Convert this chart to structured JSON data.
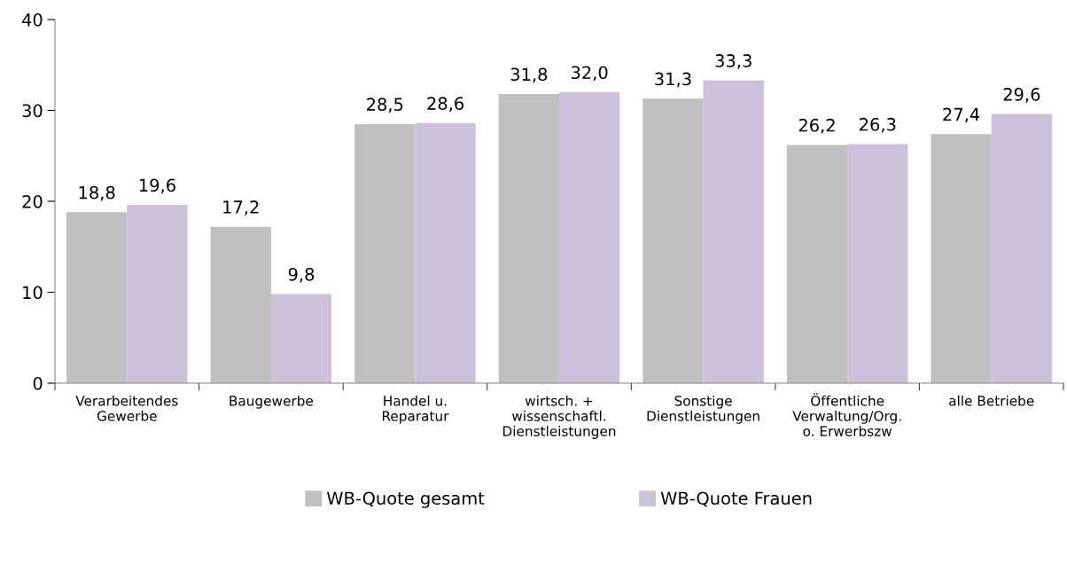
{
  "chart_data": {
    "type": "bar",
    "categories": [
      "Verarbeitendes\nGewerbe",
      "Baugewerbe",
      "Handel u.\nReparatur",
      "wirtsch. +\nwissenschaftl.\nDienstleistungen",
      "Sonstige\nDienstleistungen",
      "Öffentliche\nVerwaltung/Org.\no. Erwerbszw",
      "alle Betriebe"
    ],
    "series": [
      {
        "name": "WB-Quote gesamt",
        "color": "#c0c0c0",
        "values": [
          18.8,
          17.2,
          28.5,
          31.8,
          31.3,
          26.2,
          27.4
        ],
        "value_labels": [
          "18,8",
          "17,2",
          "28,5",
          "31,8",
          "31,3",
          "26,2",
          "27,4"
        ]
      },
      {
        "name": "WB-Quote Frauen",
        "color": "#ccc0da",
        "values": [
          19.6,
          9.8,
          28.6,
          32.0,
          33.3,
          26.3,
          29.6
        ],
        "value_labels": [
          "19,6",
          "9,8",
          "28,6",
          "32,0",
          "33,3",
          "26,3",
          "29,6"
        ]
      }
    ],
    "ylim": [
      0,
      40
    ],
    "yticks": [
      0,
      10,
      20,
      30,
      40
    ],
    "grid": false,
    "legend": "bottom"
  }
}
